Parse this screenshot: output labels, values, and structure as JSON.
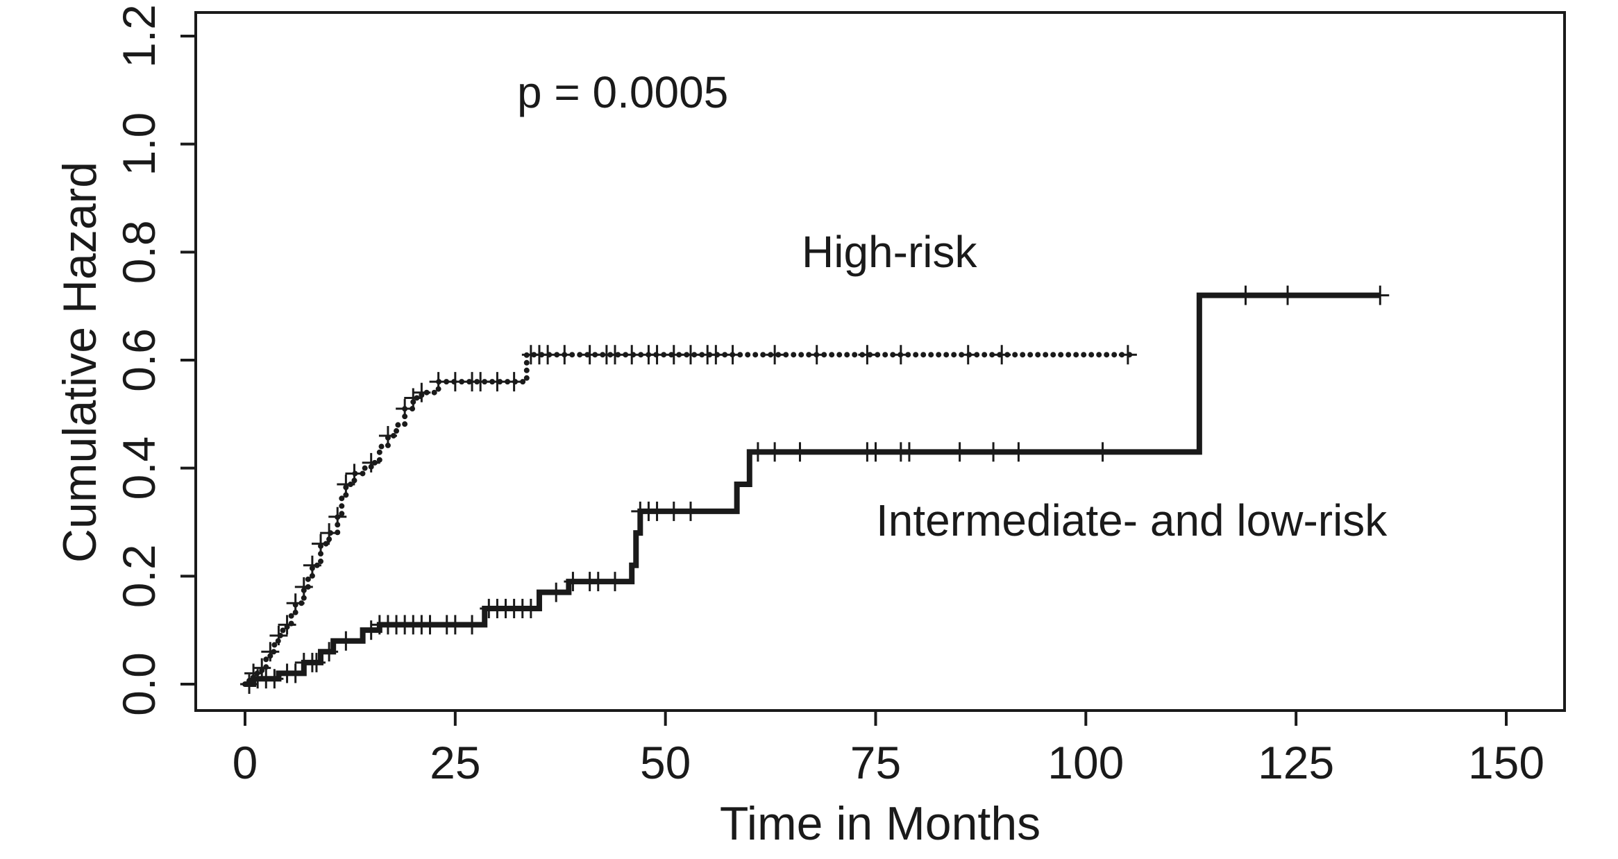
{
  "chart_data": {
    "type": "line",
    "subtype": "step",
    "title": "",
    "xlabel": "Time in Months",
    "ylabel": "Cumulative Hazard",
    "xlim": [
      -12,
      150
    ],
    "ylim": [
      -0.05,
      1.25
    ],
    "xticks": [
      0,
      25,
      50,
      75,
      100,
      125,
      150
    ],
    "xtick_labels": [
      "0",
      "25",
      "50",
      "75",
      "100",
      "125",
      "150"
    ],
    "yticks": [
      0.0,
      0.2,
      0.4,
      0.6,
      0.8,
      1.0,
      1.2
    ],
    "ytick_labels": [
      "0.0",
      "0.2",
      "0.4",
      "0.6",
      "0.8",
      "1.0",
      "1.2"
    ],
    "grid": false,
    "legend": "none",
    "colors": {
      "line": "#1a1a1a",
      "background": "#ffffff"
    },
    "annotations": {
      "pvalue": "p = 0.0005",
      "high_label": "High-risk",
      "low_label": "Intermediate- and low-risk"
    },
    "series": [
      {
        "style": "dotted",
        "steps": [
          [
            0,
            0.0
          ],
          [
            0.5,
            0.01
          ],
          [
            1,
            0.02
          ],
          [
            2,
            0.03
          ],
          [
            2.5,
            0.05
          ],
          [
            3,
            0.06
          ],
          [
            3.5,
            0.08
          ],
          [
            4,
            0.09
          ],
          [
            4.5,
            0.1
          ],
          [
            5,
            0.11
          ],
          [
            5.5,
            0.13
          ],
          [
            6,
            0.15
          ],
          [
            7,
            0.18
          ],
          [
            7.5,
            0.2
          ],
          [
            8,
            0.22
          ],
          [
            9,
            0.26
          ],
          [
            10,
            0.28
          ],
          [
            11,
            0.31
          ],
          [
            11.5,
            0.35
          ],
          [
            12,
            0.37
          ],
          [
            13,
            0.39
          ],
          [
            14,
            0.4
          ],
          [
            15,
            0.41
          ],
          [
            16,
            0.44
          ],
          [
            17,
            0.46
          ],
          [
            18,
            0.48
          ],
          [
            19,
            0.51
          ],
          [
            20,
            0.53
          ],
          [
            21,
            0.54
          ],
          [
            23,
            0.56
          ],
          [
            33.5,
            0.61
          ]
        ],
        "end": 105.5,
        "censored": [
          1,
          2,
          3,
          4,
          5,
          6,
          7,
          8,
          9,
          10,
          11,
          12,
          13,
          15,
          17,
          19,
          20,
          21,
          23,
          25,
          27,
          28,
          30,
          32,
          34,
          35,
          36,
          38,
          41,
          43,
          44,
          46,
          48,
          49,
          51,
          53,
          55,
          56,
          58,
          63,
          68,
          74,
          78,
          86,
          90,
          105
        ]
      },
      {
        "style": "solid",
        "steps": [
          [
            0,
            0.0
          ],
          [
            1,
            0.01
          ],
          [
            4,
            0.02
          ],
          [
            7,
            0.04
          ],
          [
            9,
            0.06
          ],
          [
            10.5,
            0.08
          ],
          [
            14,
            0.1
          ],
          [
            16,
            0.11
          ],
          [
            28.5,
            0.14
          ],
          [
            35,
            0.17
          ],
          [
            38.5,
            0.19
          ],
          [
            46,
            0.22
          ],
          [
            46.5,
            0.28
          ],
          [
            47,
            0.32
          ],
          [
            58.5,
            0.37
          ],
          [
            60,
            0.43
          ],
          [
            113.5,
            0.72
          ]
        ],
        "end": 135,
        "censored": [
          0.5,
          1.5,
          2.5,
          3.5,
          5,
          6,
          7,
          8,
          8.5,
          10,
          12,
          15,
          16,
          17,
          18,
          19,
          20,
          21,
          22,
          24,
          25,
          27,
          29,
          30,
          31,
          32,
          33,
          34,
          37,
          39,
          41,
          42,
          44,
          47,
          48,
          49,
          51,
          53,
          61,
          63,
          66,
          74,
          75,
          78,
          79,
          85,
          89,
          92,
          102,
          119,
          124,
          135
        ]
      }
    ]
  }
}
